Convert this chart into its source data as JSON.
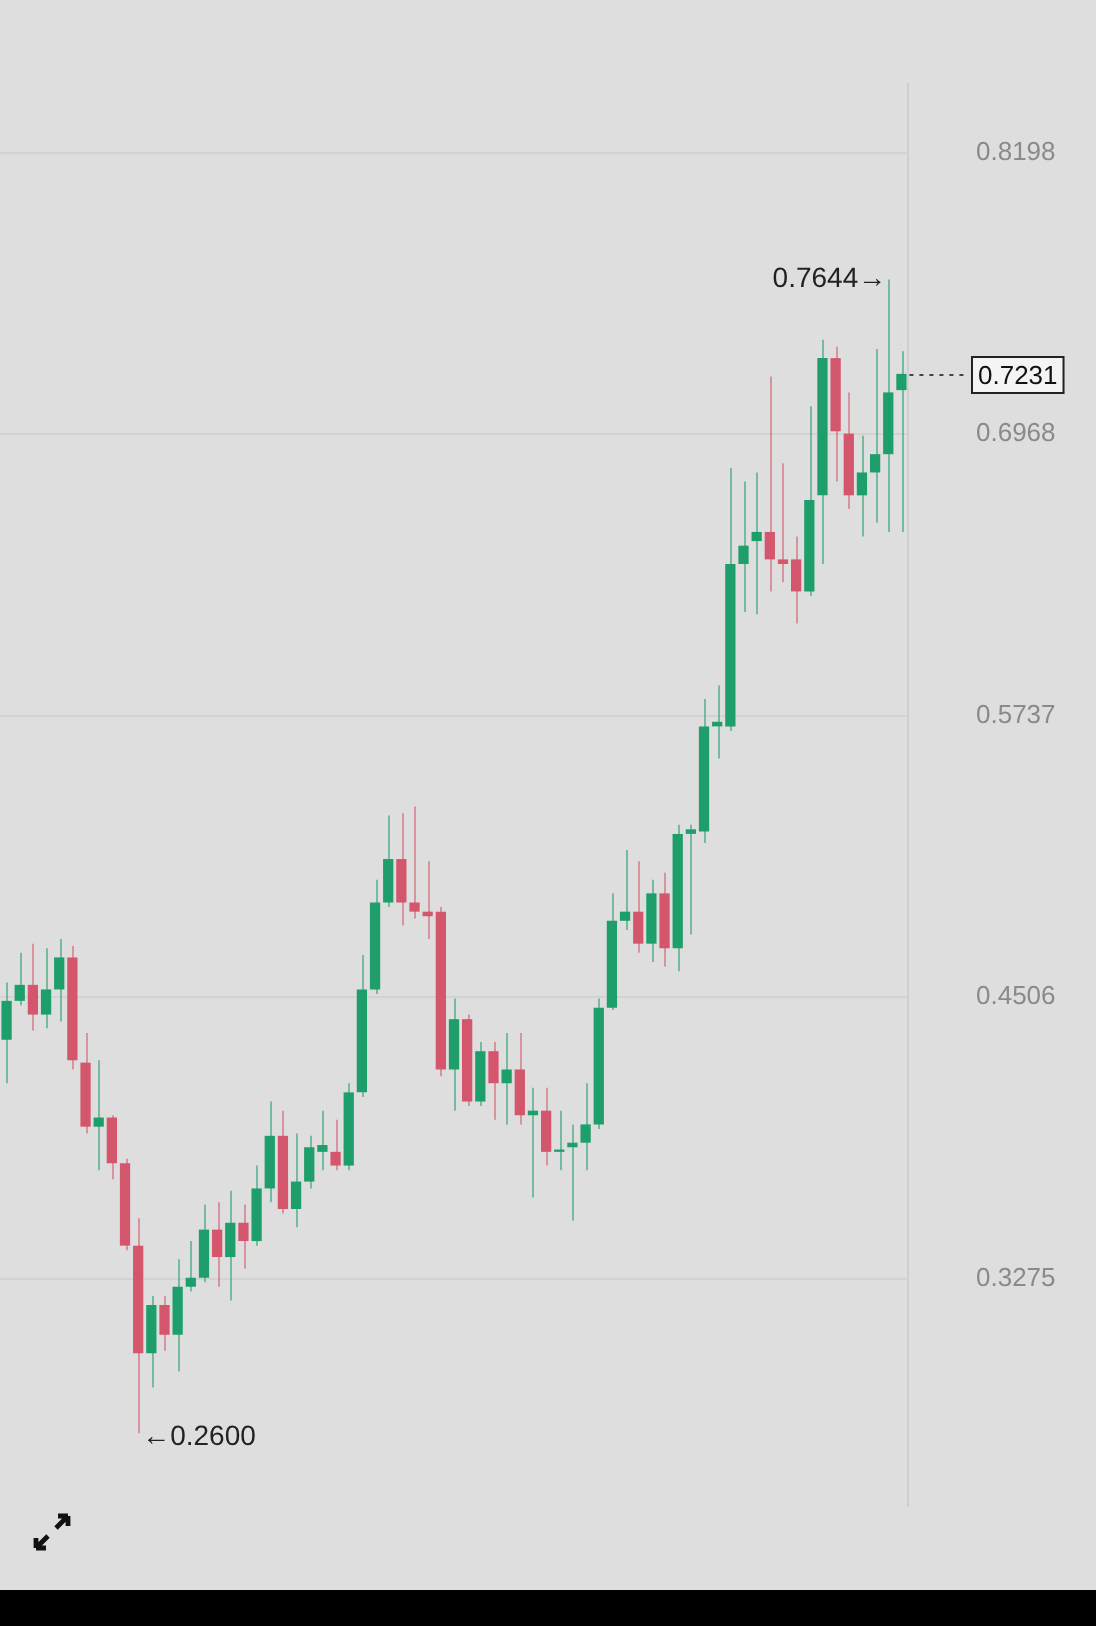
{
  "chart_data": {
    "type": "candlestick",
    "categories": [
      null,
      null,
      null,
      null,
      null,
      null,
      null,
      null,
      null,
      null,
      null,
      null,
      null,
      null,
      null,
      null,
      null,
      null,
      null,
      null,
      null,
      null,
      null,
      null,
      null,
      null,
      null,
      null,
      null,
      null,
      null,
      null,
      null,
      null,
      null,
      null,
      null,
      null,
      null,
      null,
      null,
      null,
      null,
      null,
      null,
      null,
      null,
      null,
      null,
      null,
      null,
      null,
      null,
      null,
      null,
      null,
      null,
      null,
      null,
      null,
      null,
      null,
      null,
      null,
      null,
      null,
      null,
      null,
      null
    ],
    "ohlc": [
      [
        0.432,
        0.457,
        0.413,
        0.449
      ],
      [
        0.449,
        0.47,
        0.447,
        0.456
      ],
      [
        0.456,
        0.474,
        0.436,
        0.443
      ],
      [
        0.443,
        0.472,
        0.437,
        0.454
      ],
      [
        0.454,
        0.476,
        0.44,
        0.468
      ],
      [
        0.468,
        0.473,
        0.419,
        0.423
      ],
      [
        0.422,
        0.435,
        0.391,
        0.394
      ],
      [
        0.394,
        0.423,
        0.375,
        0.398
      ],
      [
        0.398,
        0.399,
        0.371,
        0.378
      ],
      [
        0.378,
        0.38,
        0.34,
        0.342
      ],
      [
        0.342,
        0.354,
        0.26,
        0.295
      ],
      [
        0.295,
        0.32,
        0.28,
        0.316
      ],
      [
        0.316,
        0.32,
        0.296,
        0.303
      ],
      [
        0.303,
        0.336,
        0.287,
        0.324
      ],
      [
        0.324,
        0.344,
        0.322,
        0.328
      ],
      [
        0.328,
        0.36,
        0.326,
        0.349
      ],
      [
        0.349,
        0.361,
        0.324,
        0.337
      ],
      [
        0.337,
        0.366,
        0.318,
        0.352
      ],
      [
        0.352,
        0.36,
        0.332,
        0.344
      ],
      [
        0.344,
        0.377,
        0.342,
        0.367
      ],
      [
        0.367,
        0.405,
        0.361,
        0.39
      ],
      [
        0.39,
        0.401,
        0.356,
        0.358
      ],
      [
        0.358,
        0.391,
        0.35,
        0.37
      ],
      [
        0.37,
        0.39,
        0.367,
        0.385
      ],
      [
        0.383,
        0.401,
        0.375,
        0.386
      ],
      [
        0.383,
        0.397,
        0.375,
        0.377
      ],
      [
        0.377,
        0.413,
        0.375,
        0.409
      ],
      [
        0.409,
        0.469,
        0.407,
        0.454
      ],
      [
        0.454,
        0.502,
        0.452,
        0.492
      ],
      [
        0.492,
        0.53,
        0.49,
        0.511
      ],
      [
        0.511,
        0.531,
        0.482,
        0.492
      ],
      [
        0.492,
        0.534,
        0.485,
        0.488
      ],
      [
        0.488,
        0.51,
        0.476,
        0.486
      ],
      [
        0.488,
        0.49,
        0.416,
        0.419
      ],
      [
        0.419,
        0.45,
        0.401,
        0.441
      ],
      [
        0.441,
        0.443,
        0.403,
        0.405
      ],
      [
        0.405,
        0.431,
        0.403,
        0.427
      ],
      [
        0.427,
        0.431,
        0.397,
        0.413
      ],
      [
        0.413,
        0.435,
        0.395,
        0.419
      ],
      [
        0.419,
        0.435,
        0.395,
        0.399
      ],
      [
        0.399,
        0.411,
        0.363,
        0.401
      ],
      [
        0.401,
        0.411,
        0.377,
        0.383
      ],
      [
        0.383,
        0.401,
        0.375,
        0.384
      ],
      [
        0.385,
        0.395,
        0.353,
        0.387
      ],
      [
        0.387,
        0.413,
        0.375,
        0.395
      ],
      [
        0.395,
        0.45,
        0.393,
        0.446
      ],
      [
        0.446,
        0.496,
        0.445,
        0.484
      ],
      [
        0.484,
        0.515,
        0.48,
        0.488
      ],
      [
        0.488,
        0.51,
        0.47,
        0.474
      ],
      [
        0.474,
        0.502,
        0.466,
        0.496
      ],
      [
        0.496,
        0.505,
        0.464,
        0.472
      ],
      [
        0.472,
        0.526,
        0.462,
        0.522
      ],
      [
        0.522,
        0.526,
        0.478,
        0.524
      ],
      [
        0.523,
        0.581,
        0.518,
        0.569
      ],
      [
        0.569,
        0.587,
        0.555,
        0.571
      ],
      [
        0.569,
        0.682,
        0.567,
        0.64
      ],
      [
        0.64,
        0.676,
        0.619,
        0.648
      ],
      [
        0.65,
        0.68,
        0.618,
        0.654
      ],
      [
        0.654,
        0.722,
        0.628,
        0.642
      ],
      [
        0.642,
        0.684,
        0.632,
        0.64
      ],
      [
        0.642,
        0.652,
        0.614,
        0.628
      ],
      [
        0.628,
        0.709,
        0.626,
        0.668
      ],
      [
        0.67,
        0.738,
        0.64,
        0.73
      ],
      [
        0.73,
        0.735,
        0.676,
        0.698
      ],
      [
        0.697,
        0.715,
        0.664,
        0.67
      ],
      [
        0.67,
        0.696,
        0.652,
        0.68
      ],
      [
        0.68,
        0.734,
        0.658,
        0.688
      ],
      [
        0.688,
        0.7644,
        0.654,
        0.715
      ],
      [
        0.716,
        0.733,
        0.654,
        0.7231
      ]
    ],
    "colors": [
      "#1e9e6b",
      "#1e9e6b",
      "#d4566c",
      "#1e9e6b",
      "#1e9e6b",
      "#d4566c",
      "#d4566c",
      "#1e9e6b",
      "#d4566c",
      "#d4566c",
      "#d4566c",
      "#1e9e6b",
      "#d4566c",
      "#1e9e6b",
      "#1e9e6b",
      "#1e9e6b",
      "#d4566c",
      "#1e9e6b",
      "#d4566c",
      "#1e9e6b",
      "#1e9e6b",
      "#d4566c",
      "#1e9e6b",
      "#1e9e6b",
      "#1e9e6b",
      "#d4566c",
      "#1e9e6b",
      "#1e9e6b",
      "#1e9e6b",
      "#1e9e6b",
      "#d4566c",
      "#d4566c",
      "#d4566c",
      "#d4566c",
      "#1e9e6b",
      "#d4566c",
      "#1e9e6b",
      "#d4566c",
      "#1e9e6b",
      "#d4566c",
      "#1e9e6b",
      "#d4566c",
      "#1e9e6b",
      "#1e9e6b",
      "#1e9e6b",
      "#1e9e6b",
      "#1e9e6b",
      "#1e9e6b",
      "#d4566c",
      "#1e9e6b",
      "#d4566c",
      "#1e9e6b",
      "#1e9e6b",
      "#1e9e6b",
      "#1e9e6b",
      "#1e9e6b",
      "#1e9e6b",
      "#1e9e6b",
      "#d4566c",
      "#d4566c",
      "#d4566c",
      "#1e9e6b",
      "#1e9e6b",
      "#d4566c",
      "#d4566c",
      "#1e9e6b",
      "#1e9e6b",
      "#1e9e6b",
      "#1e9e6b"
    ],
    "ylim": [
      0.228,
      0.85
    ],
    "yticks": [
      0.3275,
      0.4506,
      0.5737,
      0.6968,
      0.8198
    ],
    "grid": "y",
    "tick_labels": "y",
    "ref_lines": [
      {
        "axis": "y",
        "value": 0.7231,
        "label": "0.7231",
        "line_style": "dotted"
      }
    ],
    "annotations": [
      "0.7644→",
      "←0.2600"
    ]
  }
}
